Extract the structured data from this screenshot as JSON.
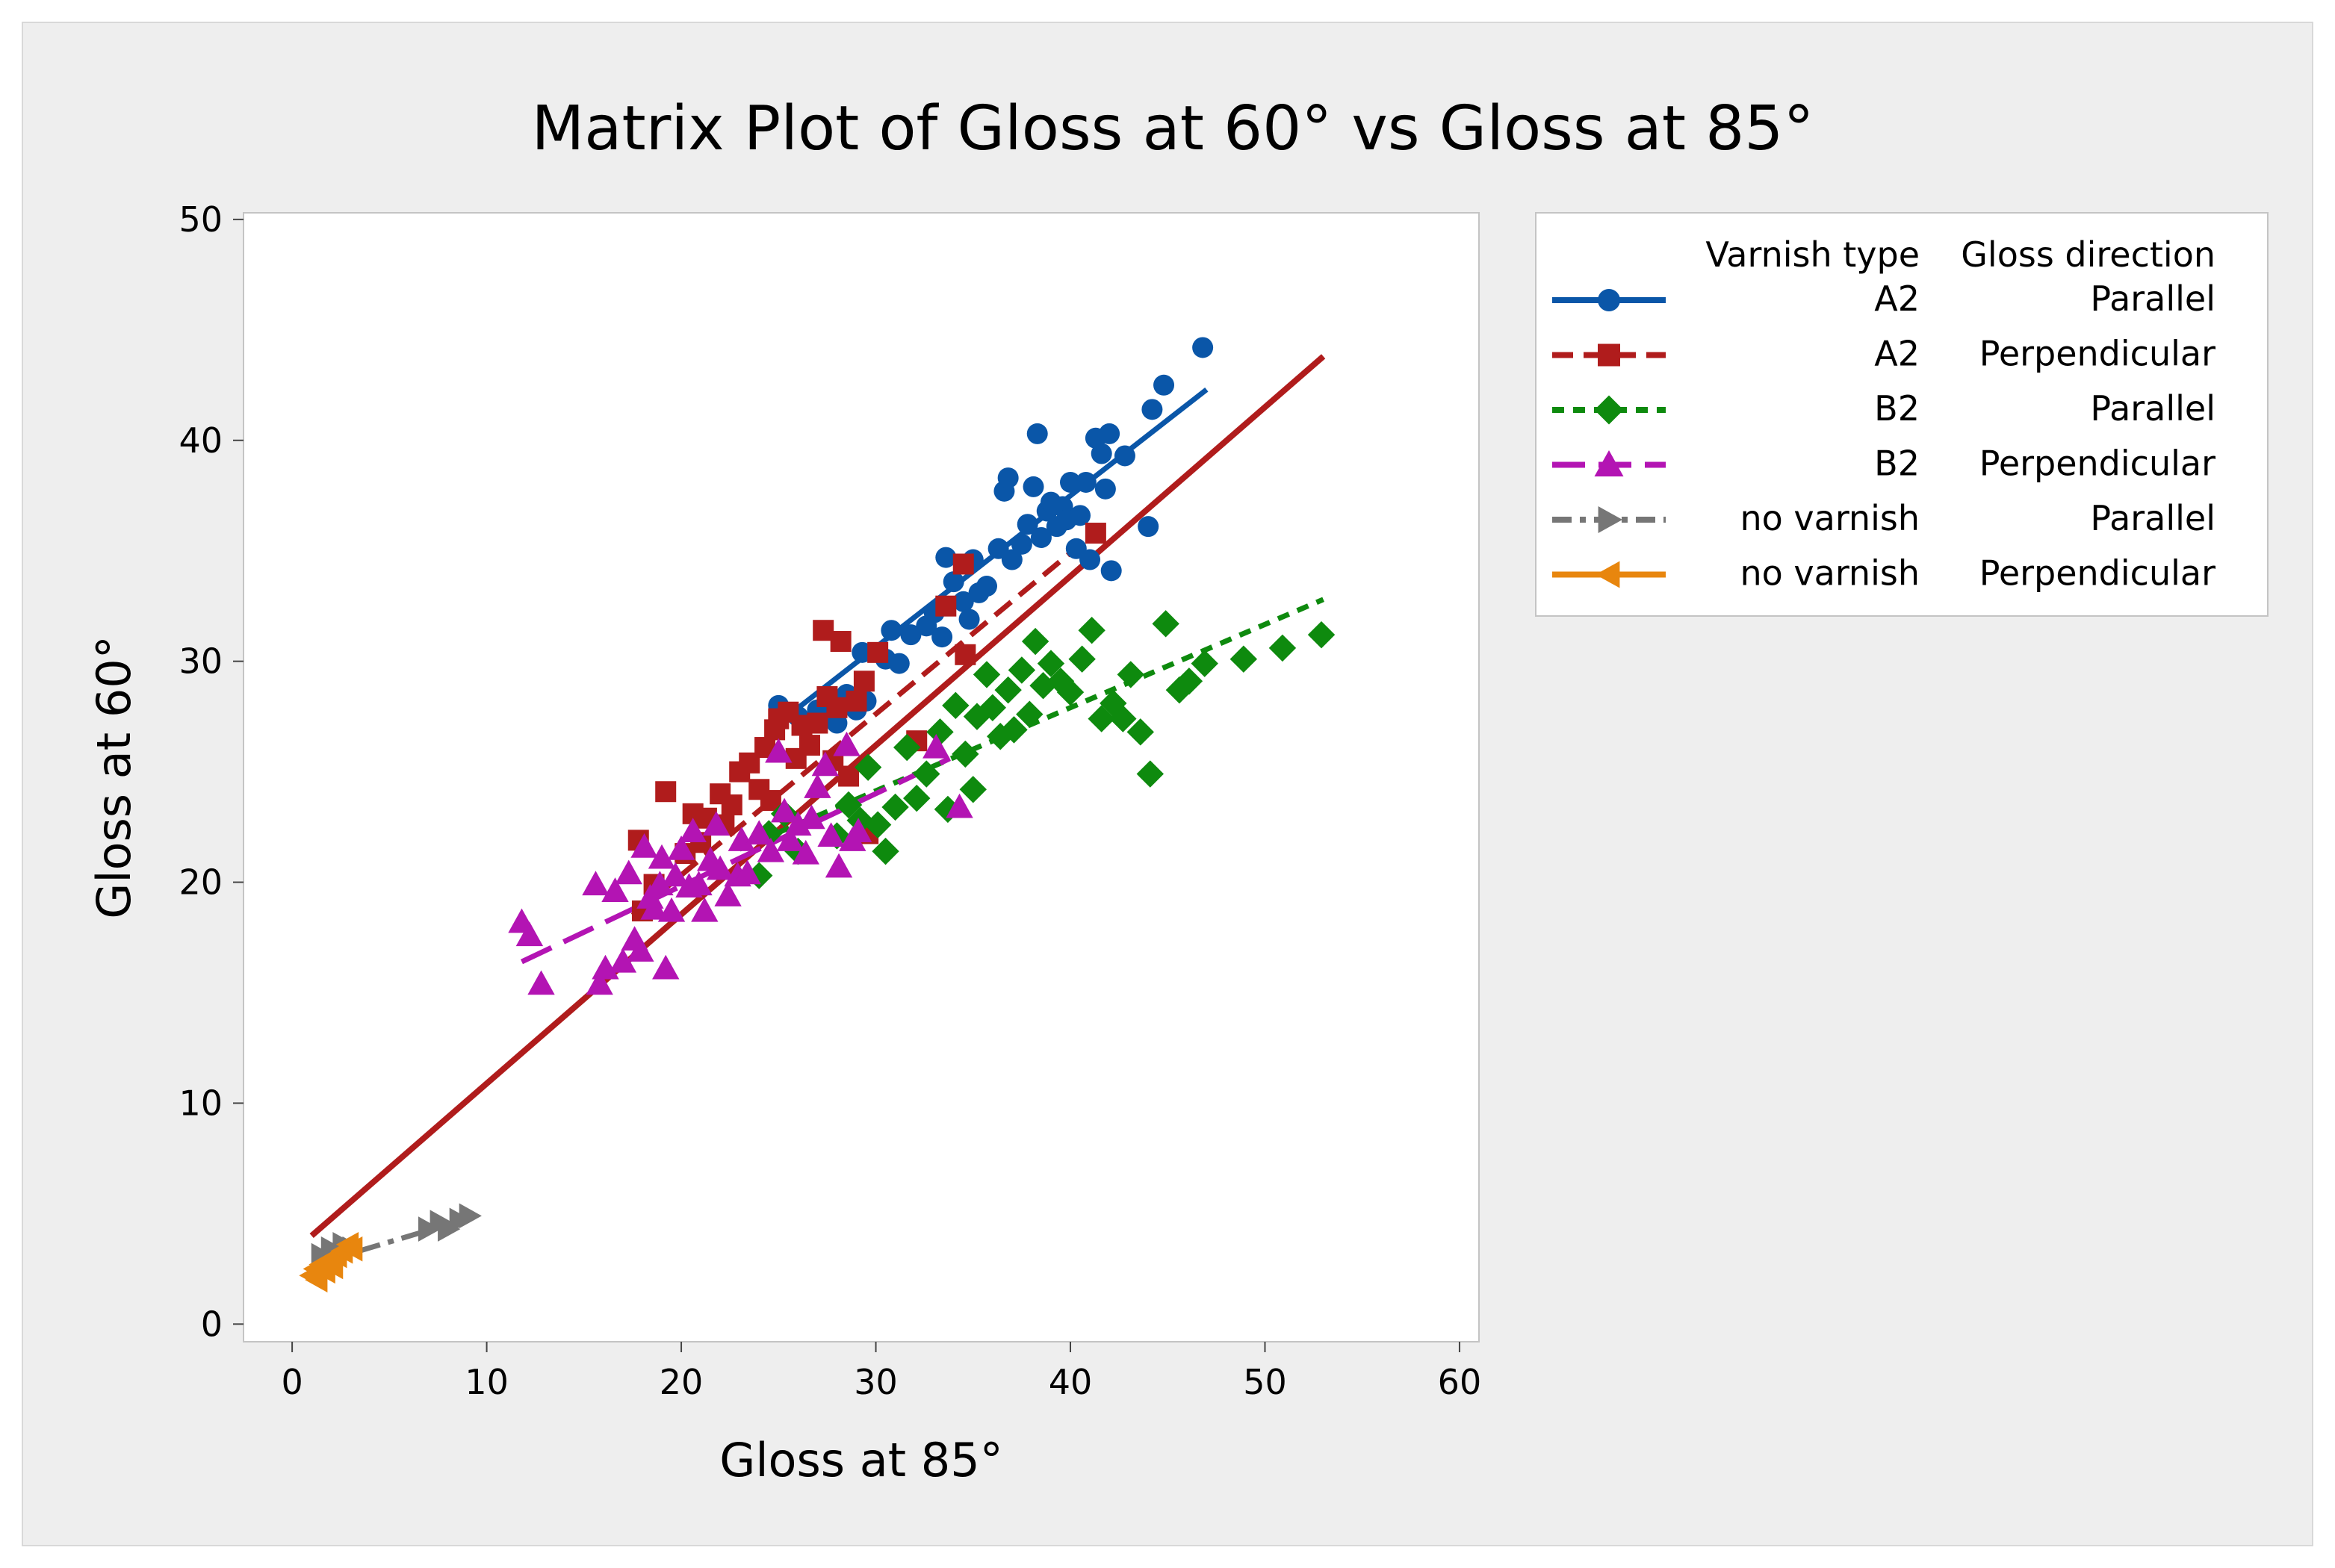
{
  "chart_data": {
    "type": "scatter",
    "title": "Matrix Plot of Gloss at 60° vs Gloss at 85°",
    "xlabel": "Gloss at 85°",
    "ylabel": "Gloss at 60°",
    "xlim": [
      -2.5,
      61
    ],
    "ylim": [
      -0.8,
      50.3
    ],
    "xticks": [
      0,
      10,
      20,
      30,
      40,
      50,
      60
    ],
    "yticks": [
      0,
      10,
      20,
      30,
      40,
      50
    ],
    "grid": false,
    "legend_position": "right",
    "legend_headers": [
      "Varnish type",
      "Gloss direction"
    ],
    "overall_fit": {
      "color": "#B01C1C",
      "x": [
        1,
        53
      ],
      "y": [
        4.0,
        43.8
      ]
    },
    "series": [
      {
        "name": "A2 Parallel",
        "varnish": "A2",
        "direction": "Parallel",
        "color": "#0A56A8",
        "marker": "circle",
        "dash": "solid",
        "fit": {
          "x": [
            25,
            47
          ],
          "y": [
            27.2,
            42.3
          ]
        },
        "points": [
          [
            25,
            28
          ],
          [
            26,
            27.5
          ],
          [
            27,
            27.8
          ],
          [
            28,
            27.2
          ],
          [
            28.5,
            28.5
          ],
          [
            29,
            27.8
          ],
          [
            29.5,
            28.2
          ],
          [
            29.3,
            30.4
          ],
          [
            30.5,
            30.1
          ],
          [
            30.8,
            31.4
          ],
          [
            31.2,
            29.9
          ],
          [
            31.8,
            31.2
          ],
          [
            32.6,
            31.6
          ],
          [
            33,
            32.2
          ],
          [
            33.4,
            31.1
          ],
          [
            33.6,
            34.7
          ],
          [
            34,
            33.6
          ],
          [
            34.5,
            32.7
          ],
          [
            34.8,
            31.9
          ],
          [
            35,
            34.6
          ],
          [
            35.3,
            33.1
          ],
          [
            35.7,
            33.4
          ],
          [
            36.3,
            35.1
          ],
          [
            36.6,
            37.7
          ],
          [
            36.8,
            38.3
          ],
          [
            37,
            34.6
          ],
          [
            37.5,
            35.3
          ],
          [
            37.8,
            36.2
          ],
          [
            38.1,
            37.9
          ],
          [
            38.3,
            40.3
          ],
          [
            38.5,
            35.6
          ],
          [
            38.8,
            36.8
          ],
          [
            39,
            37.2
          ],
          [
            39.3,
            36.1
          ],
          [
            39.6,
            37
          ],
          [
            39.8,
            36.4
          ],
          [
            40,
            38.1
          ],
          [
            40.3,
            35.1
          ],
          [
            40.5,
            36.6
          ],
          [
            40.8,
            38.1
          ],
          [
            41,
            34.6
          ],
          [
            41.3,
            40.1
          ],
          [
            41.6,
            39.4
          ],
          [
            41.8,
            37.8
          ],
          [
            42,
            40.3
          ],
          [
            42.1,
            34.1
          ],
          [
            42.8,
            39.3
          ],
          [
            44,
            36.1
          ],
          [
            44.2,
            41.4
          ],
          [
            44.8,
            42.5
          ],
          [
            46.8,
            44.2
          ]
        ]
      },
      {
        "name": "A2 Perpendicular",
        "varnish": "A2",
        "direction": "Perpendicular",
        "color": "#B01C1C",
        "marker": "square",
        "dash": "dash",
        "fit": {
          "x": [
            17.5,
            41.5
          ],
          "y": [
            18.5,
            36.0
          ]
        },
        "points": [
          [
            17.8,
            21.9
          ],
          [
            18,
            18.7
          ],
          [
            18.6,
            19.9
          ],
          [
            19.2,
            24.1
          ],
          [
            20.2,
            21.3
          ],
          [
            20.6,
            23.1
          ],
          [
            21,
            21.8
          ],
          [
            21.3,
            22.9
          ],
          [
            22,
            24
          ],
          [
            22.2,
            22.6
          ],
          [
            22.6,
            23.5
          ],
          [
            23,
            25
          ],
          [
            23.5,
            25.4
          ],
          [
            24,
            24.2
          ],
          [
            24.3,
            26.1
          ],
          [
            24.6,
            23.7
          ],
          [
            24.8,
            26.9
          ],
          [
            25,
            27.4
          ],
          [
            25.5,
            27.7
          ],
          [
            25.9,
            25.6
          ],
          [
            26.2,
            27.1
          ],
          [
            26.6,
            26.2
          ],
          [
            27,
            27.2
          ],
          [
            27.3,
            31.4
          ],
          [
            27.5,
            28.4
          ],
          [
            27.8,
            25.5
          ],
          [
            28,
            27.9
          ],
          [
            28.2,
            30.9
          ],
          [
            28.6,
            24.8
          ],
          [
            29,
            28.2
          ],
          [
            29.4,
            29.1
          ],
          [
            29.6,
            22.2
          ],
          [
            30.1,
            30.4
          ],
          [
            32.1,
            26.4
          ],
          [
            33.6,
            32.5
          ],
          [
            34.5,
            34.4
          ],
          [
            34.6,
            30.3
          ],
          [
            41.3,
            35.8
          ]
        ]
      },
      {
        "name": "B2 Parallel",
        "varnish": "B2",
        "direction": "Parallel",
        "color": "#0E8A0E",
        "marker": "diamond",
        "dash": "shortdash",
        "fit": {
          "x": [
            23,
            53
          ],
          "y": [
            21.5,
            32.8
          ]
        },
        "points": [
          [
            24,
            20.3
          ],
          [
            24.5,
            22.2
          ],
          [
            25.3,
            23.1
          ],
          [
            26,
            21.4
          ],
          [
            28,
            22.1
          ],
          [
            28.6,
            23.5
          ],
          [
            29.2,
            22.8
          ],
          [
            29.6,
            25.2
          ],
          [
            30.1,
            22.6
          ],
          [
            30.5,
            21.4
          ],
          [
            31,
            23.4
          ],
          [
            31.6,
            26.1
          ],
          [
            32.1,
            23.8
          ],
          [
            32.6,
            24.9
          ],
          [
            33.3,
            26.8
          ],
          [
            33.7,
            23.3
          ],
          [
            34.1,
            28
          ],
          [
            34.6,
            25.8
          ],
          [
            35,
            24.2
          ],
          [
            35.2,
            27.5
          ],
          [
            35.7,
            29.4
          ],
          [
            36,
            27.9
          ],
          [
            36.4,
            26.6
          ],
          [
            36.8,
            28.7
          ],
          [
            37.1,
            26.9
          ],
          [
            37.5,
            29.6
          ],
          [
            37.9,
            27.6
          ],
          [
            38.2,
            30.9
          ],
          [
            38.6,
            28.9
          ],
          [
            39,
            29.9
          ],
          [
            39.5,
            29.1
          ],
          [
            40,
            28.6
          ],
          [
            40.6,
            30.1
          ],
          [
            41.1,
            31.4
          ],
          [
            41.6,
            27.4
          ],
          [
            42.2,
            28.1
          ],
          [
            42.7,
            27.4
          ],
          [
            43.1,
            29.4
          ],
          [
            43.6,
            26.8
          ],
          [
            44.1,
            24.9
          ],
          [
            44.9,
            31.7
          ],
          [
            45.6,
            28.7
          ],
          [
            46.1,
            29.1
          ],
          [
            46.9,
            29.9
          ],
          [
            48.9,
            30.1
          ],
          [
            50.9,
            30.6
          ],
          [
            52.9,
            31.2
          ]
        ]
      },
      {
        "name": "B2 Perpendicular",
        "varnish": "B2",
        "direction": "Perpendicular",
        "color": "#B314B3",
        "marker": "triangle-up",
        "dash": "longdash",
        "fit": {
          "x": [
            11.8,
            33.8
          ],
          "y": [
            16.4,
            25.6
          ]
        },
        "points": [
          [
            11.8,
            18.2
          ],
          [
            12.2,
            17.6
          ],
          [
            12.8,
            15.4
          ],
          [
            15.6,
            19.9
          ],
          [
            15.8,
            15.4
          ],
          [
            16.1,
            16.1
          ],
          [
            16.6,
            19.6
          ],
          [
            17,
            16.4
          ],
          [
            17.3,
            20.4
          ],
          [
            17.6,
            17.4
          ],
          [
            17.9,
            16.9
          ],
          [
            18.1,
            21.6
          ],
          [
            18.4,
            19.3
          ],
          [
            18.6,
            18.8
          ],
          [
            18.9,
            19.9
          ],
          [
            19,
            21.1
          ],
          [
            19.2,
            16.1
          ],
          [
            19.5,
            18.7
          ],
          [
            19.7,
            20.3
          ],
          [
            20,
            21.5
          ],
          [
            20.4,
            19.8
          ],
          [
            20.6,
            22.3
          ],
          [
            20.9,
            19.9
          ],
          [
            21.2,
            18.7
          ],
          [
            21.5,
            21
          ],
          [
            21.8,
            22.6
          ],
          [
            22,
            20.6
          ],
          [
            22.4,
            19.4
          ],
          [
            22.9,
            20.3
          ],
          [
            23.1,
            21.9
          ],
          [
            23.4,
            20.4
          ],
          [
            24,
            22.2
          ],
          [
            24.6,
            21.4
          ],
          [
            25,
            25.9
          ],
          [
            25.3,
            23.2
          ],
          [
            25.6,
            21.9
          ],
          [
            26,
            22.6
          ],
          [
            26.4,
            21.3
          ],
          [
            26.7,
            22.9
          ],
          [
            27,
            24.3
          ],
          [
            27.4,
            25.3
          ],
          [
            27.7,
            22.1
          ],
          [
            28.1,
            20.7
          ],
          [
            28.5,
            26.2
          ],
          [
            28.8,
            21.9
          ],
          [
            29.1,
            22.3
          ],
          [
            33.1,
            26.1
          ],
          [
            34.3,
            23.4
          ]
        ]
      },
      {
        "name": "no varnish Parallel",
        "varnish": "no varnish",
        "direction": "Parallel",
        "color": "#767676",
        "marker": "triangle-right",
        "dash": "dashdot",
        "fit": {
          "x": [
            1.5,
            9.5
          ],
          "y": [
            2.8,
            4.9
          ]
        },
        "points": [
          [
            1.5,
            3.1
          ],
          [
            2,
            3.4
          ],
          [
            2.3,
            3.1
          ],
          [
            2.6,
            3.6
          ],
          [
            3.1,
            3.4
          ],
          [
            7,
            4.3
          ],
          [
            7.6,
            4.6
          ],
          [
            8,
            4.3
          ],
          [
            8.6,
            4.7
          ],
          [
            9.1,
            4.9
          ]
        ]
      },
      {
        "name": "no varnish Perpendicular",
        "varnish": "no varnish",
        "direction": "Perpendicular",
        "color": "#E8860E",
        "marker": "triangle-left",
        "dash": "solid",
        "fit": {
          "x": [
            0.9,
            3.3
          ],
          "y": [
            2.2,
            3.4
          ]
        },
        "points": [
          [
            1,
            2.2
          ],
          [
            1.2,
            2.5
          ],
          [
            1.3,
            2
          ],
          [
            1.5,
            2.7
          ],
          [
            1.7,
            2.4
          ],
          [
            1.9,
            2.9
          ],
          [
            2.1,
            2.6
          ],
          [
            2.3,
            3.1
          ],
          [
            2.6,
            3.3
          ],
          [
            2.9,
            3.6
          ],
          [
            3.1,
            3.4
          ]
        ]
      }
    ]
  }
}
